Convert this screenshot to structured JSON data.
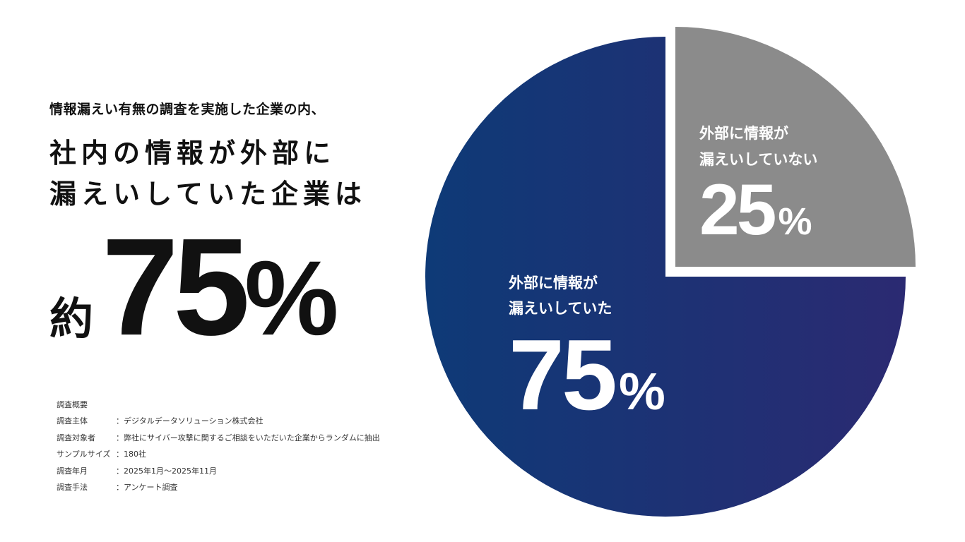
{
  "intro": "情報漏えい有無の調査を実施した企業の内、",
  "headline": {
    "line1": "社内の情報が外部に",
    "line2": "漏えいしていた企業は"
  },
  "big_stat": {
    "prefix": "約",
    "number": "75",
    "unit": "%"
  },
  "survey": {
    "title": "調査概要",
    "rows": [
      {
        "key": "調査主体",
        "value": "：デジタルデータソリューション株式会社"
      },
      {
        "key": "調査対象者",
        "value": "：弊社にサイバー攻撃に関するご相談をいただいた企業からランダムに抽出"
      },
      {
        "key": "サンプルサイズ",
        "value": "：180社"
      },
      {
        "key": "調査年月",
        "value": "：2025年1月～2025年11月"
      },
      {
        "key": "調査手法",
        "value": "：アンケート調査"
      }
    ]
  },
  "colors": {
    "leaked_start": "#0e3a77",
    "leaked_end": "#2b2a72",
    "not_leaked": "#8b8b8b",
    "label_text": "#ffffff"
  },
  "chart_data": {
    "type": "pie",
    "slices": [
      {
        "label_line1": "外部に情報が",
        "label_line2": "漏えいしていた",
        "value": 75,
        "display": "75",
        "unit": "%",
        "color": "#1e3372",
        "exploded": false
      },
      {
        "label_line1": "外部に情報が",
        "label_line2": "漏えいしていない",
        "value": 25,
        "display": "25",
        "unit": "%",
        "color": "#8b8b8b",
        "exploded": true
      }
    ]
  }
}
